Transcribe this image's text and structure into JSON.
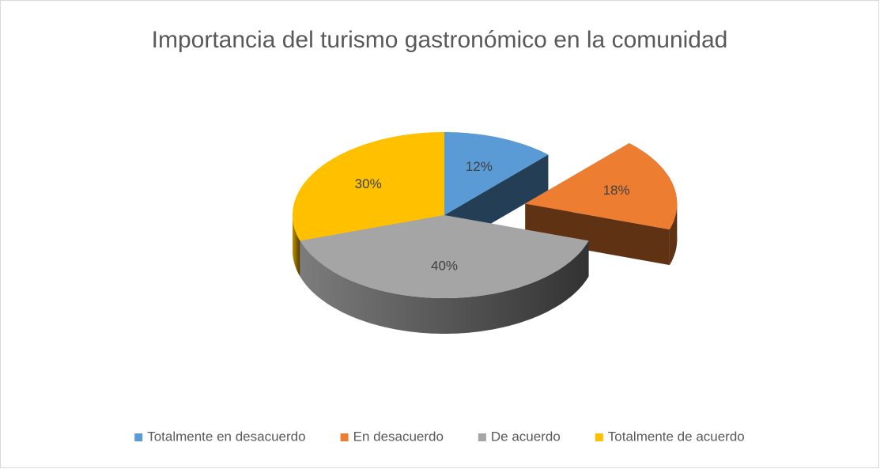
{
  "chart_data": {
    "type": "pie3d",
    "title": "Importancia del turismo gastronómico en la comunidad",
    "categories": [
      "Totalmente en desacuerdo",
      "En desacuerdo",
      "De acuerdo",
      "Totalmente de acuerdo"
    ],
    "values": [
      12,
      18,
      40,
      30
    ],
    "value_labels": [
      "12%",
      "18%",
      "40%",
      "30%"
    ],
    "colors": [
      "#5b9bd5",
      "#ed7d31",
      "#a5a5a5",
      "#ffc000"
    ],
    "legend": "bottom"
  }
}
